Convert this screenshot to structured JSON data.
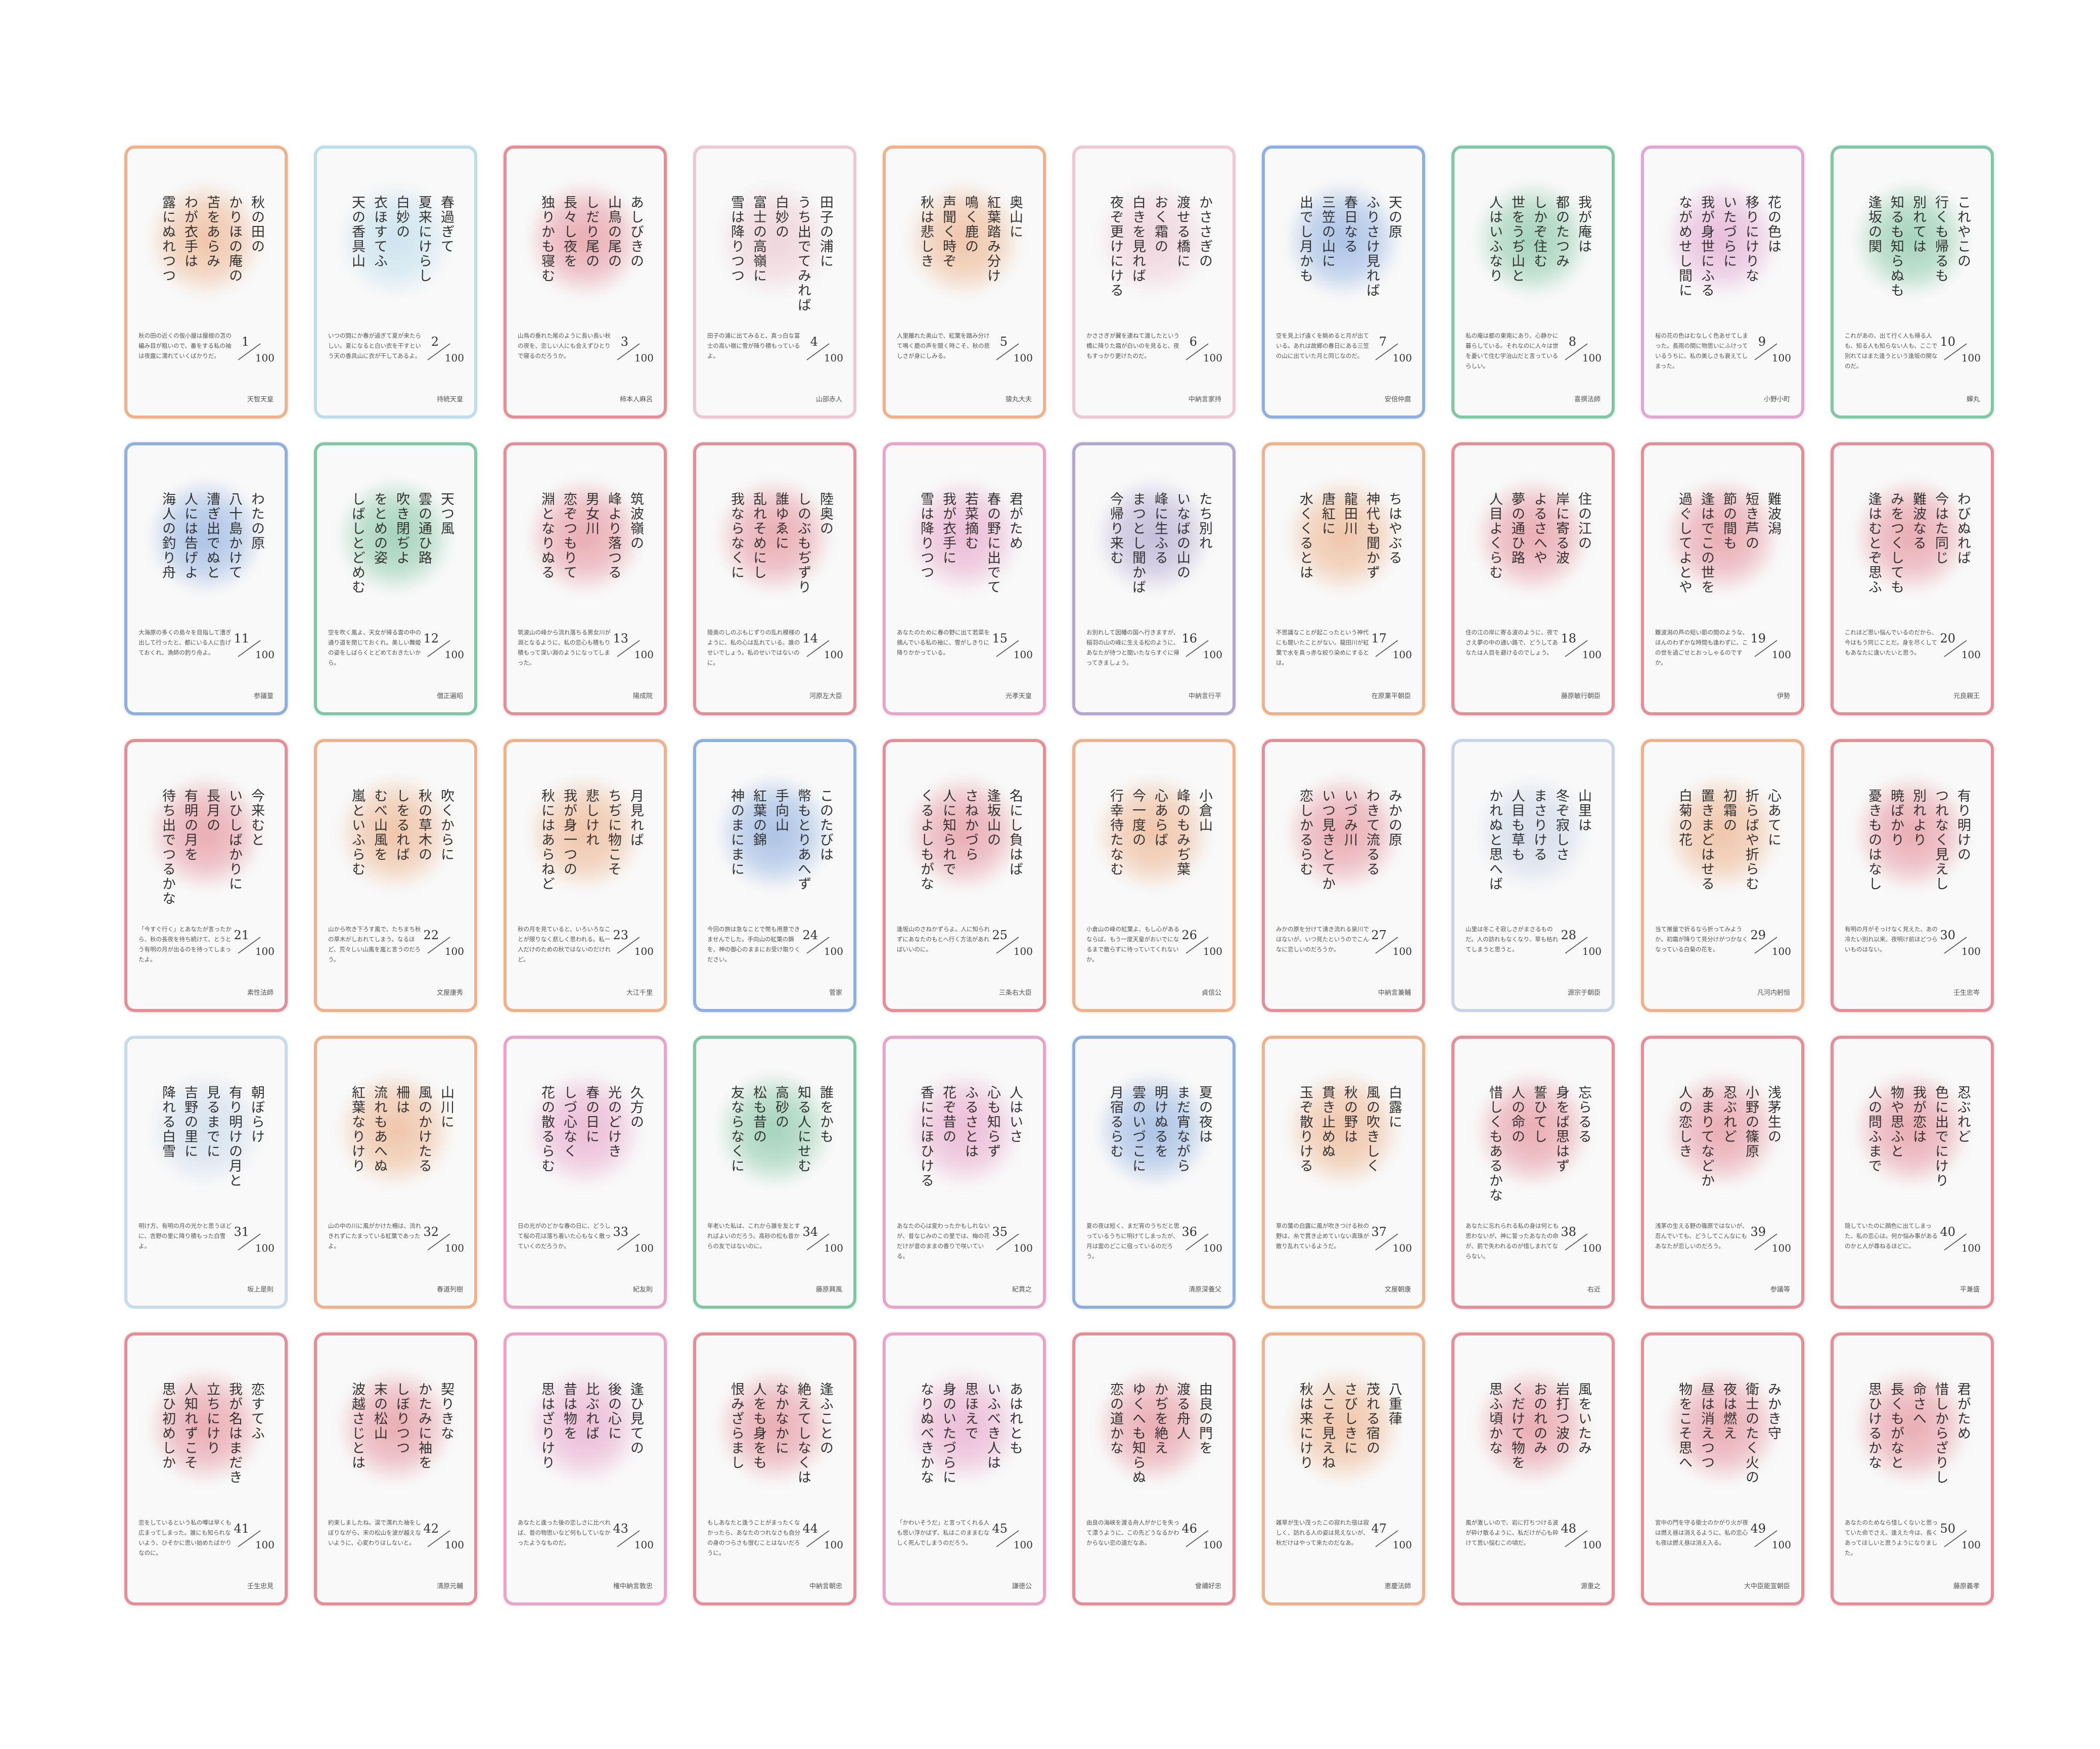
{
  "total": 100,
  "cards": [
    {
      "number": 1,
      "color": "#e89a66",
      "poem": [
        "秋の田の",
        "かりほの庵の",
        "苫をあらみ",
        "わが衣手は",
        "露にぬれつつ"
      ],
      "explanation": "秋の田の近くの仮小屋は屋根の苫の編み目が粗いので、番をする私の袖は夜露に濡れていくばかりだ。",
      "poet": "天智天皇"
    },
    {
      "number": 2,
      "color": "#a9d3e6",
      "poem": [
        "春過ぎて",
        "夏来にけらし",
        "白妙の",
        "衣ほすてふ",
        "天の香具山"
      ],
      "explanation": "いつの間にか春が過ぎて夏が来たらしい。夏になると白い衣を干すという天の香具山に衣が干してあるよ。",
      "poet": "持統天皇"
    },
    {
      "number": 3,
      "color": "#dc6c78",
      "poem": [
        "あしびきの",
        "山鳥の尾の",
        "しだり尾の",
        "長々し夜を",
        "独りかも寝む"
      ],
      "explanation": "山鳥の垂れた尾のように長い長い秋の夜を、恋しい人にも会えずひとりで寝るのだろうか。",
      "poet": "柿本人麻呂"
    },
    {
      "number": 4,
      "color": "#e6b8c4",
      "poem": [
        "田子の浦に",
        "うち出でてみれば",
        "白妙の",
        "富士の高嶺に",
        "雪は降りつつ"
      ],
      "explanation": "田子の浦に出てみると、真っ白な富士の高い嶺に雪が降り積もっているよ。",
      "poet": "山部赤人"
    },
    {
      "number": 5,
      "color": "#e89a66",
      "poem": [
        "奥山に",
        "紅葉踏み分け",
        "鳴く鹿の",
        "声聞く時ぞ",
        "秋は悲しき"
      ],
      "explanation": "人里離れた奥山で、紅葉を踏み分けて鳴く鹿の声を聞く時こそ、秋の悲しさが身にしみる。",
      "poet": "猿丸大夫"
    },
    {
      "number": 6,
      "color": "#e8b8c8",
      "poem": [
        "かささぎの",
        "渡せる橋に",
        "おく霜の",
        "白きを見れば",
        "夜ぞ更けにける"
      ],
      "explanation": "かささぎが翼を連ねて渡したという橋に降りた霜が白いのを見ると、夜もすっかり更けたのだ。",
      "poet": "中納言家持"
    },
    {
      "number": 7,
      "color": "#6a96d6",
      "poem": [
        "天の原",
        "ふりさけ見れば",
        "春日なる",
        "三笠の山に",
        "出でし月かも"
      ],
      "explanation": "空を見上げ遠くを眺めると月が出ている。あれは故郷の春日にある三笠の山に出ていた月と同じなのだ。",
      "poet": "安倍仲麿"
    },
    {
      "number": 8,
      "color": "#5cb487",
      "poem": [
        "我が庵は",
        "都のたつみ",
        "しかぞ住む",
        "世をうぢ山と",
        "人はいふなり"
      ],
      "explanation": "私の庵は都の東南にあり、心静かに暮らしている。それなのに人々は世を憂いて住む宇治山だと言っているらしい。",
      "poet": "喜撰法師"
    },
    {
      "number": 9,
      "color": "#d98cc4",
      "poem": [
        "花の色は",
        "移りにけりな",
        "いたづらに",
        "我が身世にふる",
        "ながめせし間に"
      ],
      "explanation": "桜の花の色はむなしく色あせてしまった。長雨の間に物思いにふけっているうちに、私の美しさも衰えてしまった。",
      "poet": "小野小町"
    },
    {
      "number": 10,
      "color": "#5cb487",
      "poem": [
        "これやこの",
        "行くも帰るも",
        "別れては",
        "知るも知らぬも",
        "逢坂の関"
      ],
      "explanation": "これがあの、出て行く人も帰る人も、知る人も知らない人も、ここで別れてはまた逢うという逢坂の関なのだ。",
      "poet": "蟬丸"
    },
    {
      "number": 11,
      "color": "#6a96d6",
      "poem": [
        "わたの原",
        "八十島かけて",
        "漕ぎ出でぬと",
        "人には告げよ",
        "海人の釣り舟"
      ],
      "explanation": "大海原の多くの島々を目指して漕ぎ出して行ったと、都にいる人に告げておくれ、漁師の釣り舟よ。",
      "poet": "参議篁"
    },
    {
      "number": 12,
      "color": "#5cb487",
      "poem": [
        "天つ風",
        "雲の通ひ路",
        "吹き閉ぢよ",
        "をとめの姿",
        "しばしとどめむ"
      ],
      "explanation": "空を吹く風よ、天女が帰る雲の中の通り道を閉じておくれ。美しい舞姫の姿をしばらくとどめておきたいから。",
      "poet": "僧正遍昭"
    },
    {
      "number": 13,
      "color": "#dc6c78",
      "poem": [
        "筑波嶺の",
        "峰より落つる",
        "男女川",
        "恋ぞつもりて",
        "淵となりぬる"
      ],
      "explanation": "筑波山の峰から流れ落ちる男女川が淵となるように、私の恋心も積もり積もって深い淵のようになってしまった。",
      "poet": "陽成院"
    },
    {
      "number": 14,
      "color": "#dc6c78",
      "poem": [
        "陸奥の",
        "しのぶもぢずり",
        "誰ゆゑに",
        "乱れそめにし",
        "我ならなくに"
      ],
      "explanation": "陸奥のしのぶもじずりの乱れ模様のように、私の心は乱れている。誰のせいでしょう。私のせいではないのに。",
      "poet": "河原左大臣"
    },
    {
      "number": 15,
      "color": "#e08ab8",
      "poem": [
        "君がため",
        "春の野に出でて",
        "若菜摘む",
        "我が衣手に",
        "雪は降りつつ"
      ],
      "explanation": "あなたのために春の野に出て若菜を摘んでいる私の袖に、雪がしきりに降りかかっている。",
      "poet": "光孝天皇"
    },
    {
      "number": 16,
      "color": "#9a8cc2",
      "poem": [
        "たち別れ",
        "いなばの山の",
        "峰に生ふる",
        "まつとし聞かば",
        "今帰り来む"
      ],
      "explanation": "お別れして因幡の国へ行きますが、稲羽の山の峰に生える松のように、あなたが待つと聞いたならすぐに帰ってきましょう。",
      "poet": "中納言行平"
    },
    {
      "number": 17,
      "color": "#e89a66",
      "poem": [
        "ちはやぶる",
        "神代も聞かず",
        "龍田川",
        "唐紅に",
        "水くくるとは"
      ],
      "explanation": "不思議なことが起こったという神代にも聞いたことがない。龍田川が紅葉で水を真っ赤な絞り染めにするとは。",
      "poet": "在原業平朝臣"
    },
    {
      "number": 18,
      "color": "#dc6c78",
      "poem": [
        "住の江の",
        "岸に寄る波",
        "よるさへや",
        "夢の通ひ路",
        "人目よくらむ"
      ],
      "explanation": "住の江の岸に寄る波のように、夜でさえ夢の中の通い路で、どうしてあなたは人目を避けるのでしょう。",
      "poet": "藤原敏行朝臣"
    },
    {
      "number": 19,
      "color": "#dc6c78",
      "poem": [
        "難波潟",
        "短き芦の",
        "節の間も",
        "逢はでこの世を",
        "過ぐしてよとや"
      ],
      "explanation": "難波潟の芦の短い節の間のような、ほんのわずかな時間も逢わずに、この世を過ごせとおっしゃるのですか。",
      "poet": "伊勢"
    },
    {
      "number": 20,
      "color": "#dc6c78",
      "poem": [
        "わびぬれば",
        "今はた同じ",
        "難波なる",
        "みをつくしても",
        "逢はむとぞ思ふ"
      ],
      "explanation": "これほど思い悩んでいるのだから、今はもう同じことだ。身を尽くしてもあなたに逢いたいと思う。",
      "poet": "元良親王"
    },
    {
      "number": 21,
      "color": "#dc6c78",
      "poem": [
        "今来むと",
        "いひしばかりに",
        "長月の",
        "有明の月を",
        "待ち出でつるかな"
      ],
      "explanation": "「今すぐ行く」とあなたが言ったから、秋の長夜を待ち続けて、とうとう有明の月が出るのを待ってしまったよ。",
      "poet": "素性法師"
    },
    {
      "number": 22,
      "color": "#e89a66",
      "poem": [
        "吹くからに",
        "秋の草木の",
        "しをるれば",
        "むべ山風を",
        "嵐といふらむ"
      ],
      "explanation": "山から吹き下ろす風で、たちまち秋の草木がしおれてしまう。なるほど、荒々しい山風を嵐と言うのだろう。",
      "poet": "文屋康秀"
    },
    {
      "number": 23,
      "color": "#e89a66",
      "poem": [
        "月見れば",
        "ちぢに物こそ",
        "悲しけれ",
        "我が身一つの",
        "秋にはあらねど"
      ],
      "explanation": "秋の月を見ていると、いろいろなことが限りなく悲しく思われる。私一人だけのための秋ではないのだけれど。",
      "poet": "大江千里"
    },
    {
      "number": 24,
      "color": "#6a96d6",
      "poem": [
        "このたびは",
        "幣もとりあへず",
        "手向山",
        "紅葉の錦",
        "神のまにまに"
      ],
      "explanation": "今回の旅は急なことで幣も用意できませんでした。手向山の紅葉の錦を、神の御心のままにお受け取りください。",
      "poet": "菅家"
    },
    {
      "number": 25,
      "color": "#dc6c78",
      "poem": [
        "名にし負はば",
        "逢坂山の",
        "さねかづら",
        "人に知られで",
        "くるよしもがな"
      ],
      "explanation": "逢坂山のさねかずらよ。人に知られずにあなたのもとへ行く方法があればいいのに。",
      "poet": "三条右大臣"
    },
    {
      "number": 26,
      "color": "#e89a66",
      "poem": [
        "小倉山",
        "峰のもみぢ葉",
        "心あらば",
        "今一度の",
        "行幸待たなむ"
      ],
      "explanation": "小倉山の峰の紅葉よ、もし心があるならば、もう一度天皇がおいでになるまで散らずに待っていてくれないか。",
      "poet": "貞信公"
    },
    {
      "number": 27,
      "color": "#dc6c78",
      "poem": [
        "みかの原",
        "わきて流るる",
        "いづみ川",
        "いつ見きとてか",
        "恋しかるらむ"
      ],
      "explanation": "みかの原を分けて湧き流れる泉川ではないが、いつ見たというのでこんなに恋しいのだろうか。",
      "poet": "中納言兼輔"
    },
    {
      "number": 28,
      "color": "#b8c8e0",
      "poem": [
        "山里は",
        "冬ぞ寂しさ",
        "まさりける",
        "人目も草も",
        "かれぬと思へば"
      ],
      "explanation": "山里は冬こそ寂しさがまさるものだ。人の訪れもなくなり、草も枯れてしまうと思うと。",
      "poet": "源宗于朝臣"
    },
    {
      "number": 29,
      "color": "#e89a66",
      "poem": [
        "心あてに",
        "折らばや折らむ",
        "初霜の",
        "置きまどはせる",
        "白菊の花"
      ],
      "explanation": "当て推量で折るなら折ってみようか。初霜が降りて見分けがつかなくなっている白菊の花を。",
      "poet": "凡河内躬恒"
    },
    {
      "number": 30,
      "color": "#dc6c78",
      "poem": [
        "有り明けの",
        "つれなく見えし",
        "別れより",
        "暁ばかり",
        "憂きものはなし"
      ],
      "explanation": "有明の月がそっけなく見えた、あの冷たい別れ以来、夜明け前ほどつらいものはない。",
      "poet": "壬生忠岑"
    },
    {
      "number": 31,
      "color": "#b8cfe6",
      "poem": [
        "朝ぼらけ",
        "有り明けの月と",
        "見るまでに",
        "吉野の里に",
        "降れる白雪"
      ],
      "explanation": "明け方、有明の月の光かと思うほどに、吉野の里に降り積もった白雪よ。",
      "poet": "坂上是則"
    },
    {
      "number": 32,
      "color": "#e89a66",
      "poem": [
        "山川に",
        "風のかけたる",
        "柵は",
        "流れもあへぬ",
        "紅葉なりけり"
      ],
      "explanation": "山の中の川に風がかけた柵は、流れきれずにたまっている紅葉であったよ。",
      "poet": "春道列樹"
    },
    {
      "number": 33,
      "color": "#e08ab8",
      "poem": [
        "久方の",
        "光のどけき",
        "春の日に",
        "しづ心なく",
        "花の散るらむ"
      ],
      "explanation": "日の光がのどかな春の日に、どうして桜の花は落ち着いた心もなく散っていくのだろうか。",
      "poet": "紀友則"
    },
    {
      "number": 34,
      "color": "#5cb487",
      "poem": [
        "誰をかも",
        "知る人にせむ",
        "高砂の",
        "松も昔の",
        "友ならなくに"
      ],
      "explanation": "年老いた私は、これから誰を友とすればよいのだろう。高砂の松も昔からの友ではないのに。",
      "poet": "藤原興風"
    },
    {
      "number": 35,
      "color": "#e08ab8",
      "poem": [
        "人はいさ",
        "心も知らず",
        "ふるさとは",
        "花ぞ昔の",
        "香ににほひける"
      ],
      "explanation": "あなたの心は変わったかもしれないが、昔なじみのこの里では、梅の花だけが昔のままの香りで咲いている。",
      "poet": "紀貫之"
    },
    {
      "number": 36,
      "color": "#6a96d6",
      "poem": [
        "夏の夜は",
        "まだ宵ながら",
        "明けぬるを",
        "雲のいづこに",
        "月宿るらむ"
      ],
      "explanation": "夏の夜は短く、まだ宵のうちだと思っているうちに明けてしまったが、月は雲のどこに宿っているのだろう。",
      "poet": "清原深養父"
    },
    {
      "number": 37,
      "color": "#e89a66",
      "poem": [
        "白露に",
        "風の吹きしく",
        "秋の野は",
        "貫き止めぬ",
        "玉ぞ散りける"
      ],
      "explanation": "草の葉の白露に風が吹きつける秋の野は、糸で貫き止めていない真珠が散り乱れているようだ。",
      "poet": "文屋朝康"
    },
    {
      "number": 38,
      "color": "#dc6c78",
      "poem": [
        "忘らるる",
        "身をば思はず",
        "誓ひてし",
        "人の命の",
        "惜しくもあるかな"
      ],
      "explanation": "あなたに忘れられる私の身は何とも思わないが、神に誓ったあなたの命が、罰で失われるのが惜しまれてならない。",
      "poet": "右近"
    },
    {
      "number": 39,
      "color": "#dc6c78",
      "poem": [
        "浅茅生の",
        "小野の篠原",
        "忍ぶれど",
        "あまりてなどか",
        "人の恋しき"
      ],
      "explanation": "浅茅の生える野の篠原ではないが、忍んでいても、どうしてこんなにもあなたが恋しいのだろう。",
      "poet": "参議等"
    },
    {
      "number": 40,
      "color": "#dc6c78",
      "poem": [
        "忍ぶれど",
        "色に出でにけり",
        "我が恋は",
        "物や思ふと",
        "人の問ふまで"
      ],
      "explanation": "隠していたのに顔色に出てしまった、私の恋心は。何か悩み事があるのかと人が尋ねるほどに。",
      "poet": "平兼盛"
    },
    {
      "number": 41,
      "color": "#dc6c78",
      "poem": [
        "恋すてふ",
        "我が名はまだき",
        "立ちにけり",
        "人知れずこそ",
        "思ひ初めしか"
      ],
      "explanation": "恋をしているという私の噂は早くも広まってしまった。誰にも知られないよう、ひそかに思い始めたばかりなのに。",
      "poet": "壬生忠見"
    },
    {
      "number": 42,
      "color": "#dc6c78",
      "poem": [
        "契りきな",
        "かたみに袖を",
        "しぼりつつ",
        "末の松山",
        "波越さじとは"
      ],
      "explanation": "約束しましたね。涙で濡れた袖をしぼりながら、末の松山を波が越えないように、心変わりはしないと。",
      "poet": "清原元輔"
    },
    {
      "number": 43,
      "color": "#e08ab8",
      "poem": [
        "逢ひ見ての",
        "後の心に",
        "比ぶれば",
        "昔は物を",
        "思はざりけり"
      ],
      "explanation": "あなたと逢った後の恋しさに比べれば、昔の物思いなど何もしていなかったようなものだ。",
      "poet": "権中納言敦忠"
    },
    {
      "number": 44,
      "color": "#dc6c78",
      "poem": [
        "逢ふことの",
        "絶えてしなくは",
        "なかなかに",
        "人をも身をも",
        "恨みざらまし"
      ],
      "explanation": "もしあなたと逢うことがまったくなかったら、あなたのつれなさも自分の身のつらさも恨むことはないだろうに。",
      "poet": "中納言朝忠"
    },
    {
      "number": 45,
      "color": "#e08ab8",
      "poem": [
        "あはれとも",
        "いふべき人は",
        "思ほえで",
        "身のいたづらに",
        "なりぬべきかな"
      ],
      "explanation": "「かわいそうだ」と言ってくれる人も思い浮かばず、私はこのままむなしく死んでしまうのだろう。",
      "poet": "謙徳公"
    },
    {
      "number": 46,
      "color": "#dc6c78",
      "poem": [
        "由良の門を",
        "渡る舟人",
        "かぢを絶え",
        "ゆくへも知らぬ",
        "恋の道かな"
      ],
      "explanation": "由良の海峡を渡る舟人がかじを失って漂うように、この先どうなるかわからない恋の道だなあ。",
      "poet": "曾禰好忠"
    },
    {
      "number": 47,
      "color": "#e89a66",
      "poem": [
        "八重葎",
        "茂れる宿の",
        "さびしきに",
        "人こそ見えね",
        "秋は来にけり"
      ],
      "explanation": "雑草が生い茂ったこの寂れた宿は寂しく、訪れる人の姿は見えないが、秋だけはやって来たのだなあ。",
      "poet": "恵慶法師"
    },
    {
      "number": 48,
      "color": "#dc6c78",
      "poem": [
        "風をいたみ",
        "岩打つ波の",
        "おのれのみ",
        "くだけて物を",
        "思ふ頃かな"
      ],
      "explanation": "風が激しいので、岩に打ちつける波が砕け散るように、私だけが心も砕けて思い悩むこの頃だ。",
      "poet": "源重之"
    },
    {
      "number": 49,
      "color": "#dc6c78",
      "poem": [
        "みかき守",
        "衛士のたく火の",
        "夜は燃え",
        "昼は消えつつ",
        "物をこそ思へ"
      ],
      "explanation": "宮中の門を守る衛士のかがり火が夜は燃え昼は消えるように、私の恋心も夜は燃え昼は消え入る。",
      "poet": "大中臣能宣朝臣"
    },
    {
      "number": 50,
      "color": "#dc6c78",
      "poem": [
        "君がため",
        "惜しからざりし",
        "命さへ",
        "長くもがなと",
        "思ひけるかな"
      ],
      "explanation": "あなたのためなら惜しくないと思っていた命でさえ、逢えた今は、長くあってほしいと思うようになりました。",
      "poet": "藤原義孝"
    }
  ]
}
